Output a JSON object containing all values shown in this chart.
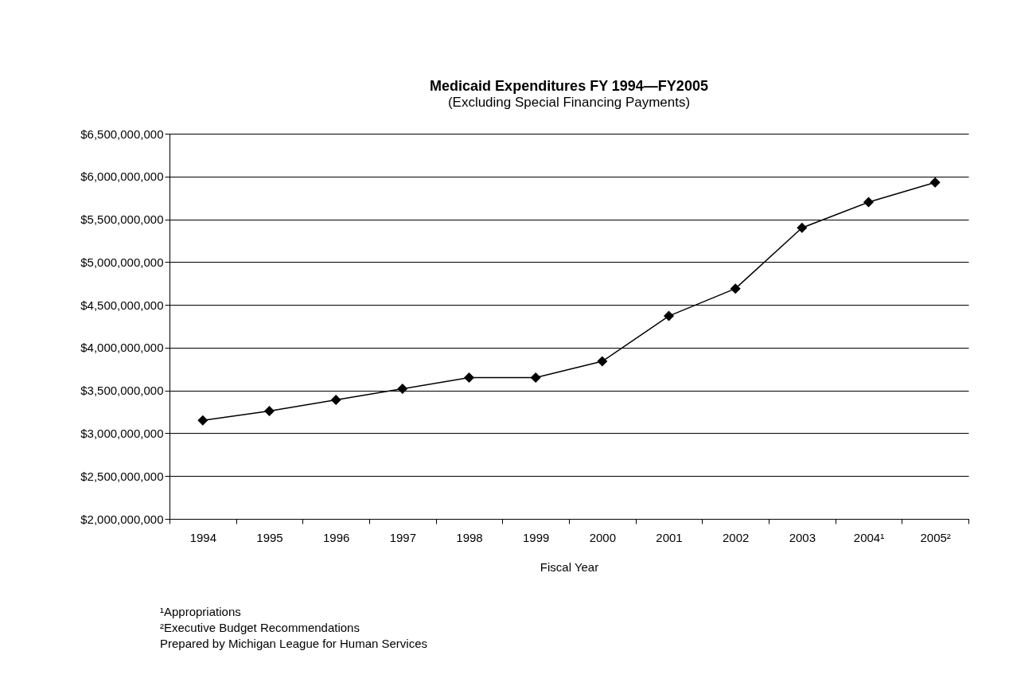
{
  "chart_data": {
    "type": "line",
    "title": "Medicaid Expenditures FY 1994—FY2005",
    "subtitle": "(Excluding Special Financing Payments)",
    "xlabel": "Fiscal Year",
    "categories": [
      "1994",
      "1995",
      "1996",
      "1997",
      "1998",
      "1999",
      "2000",
      "2001",
      "2002",
      "2003",
      "2004¹",
      "2005²"
    ],
    "series": [
      {
        "color": "#000000",
        "values": [
          3150000000,
          3260000000,
          3390000000,
          3520000000,
          3650000000,
          3650000000,
          3840000000,
          4370000000,
          4690000000,
          5400000000,
          5700000000,
          5930000000
        ]
      }
    ],
    "ylim": [
      2000000000,
      6500000000
    ],
    "yticks": [
      {
        "value": 2000000000,
        "label": "$2,000,000,000"
      },
      {
        "value": 2500000000,
        "label": "$2,500,000,000"
      },
      {
        "value": 3000000000,
        "label": "$3,000,000,000"
      },
      {
        "value": 3500000000,
        "label": "$3,500,000,000"
      },
      {
        "value": 4000000000,
        "label": "$4,000,000,000"
      },
      {
        "value": 4500000000,
        "label": "$4,500,000,000"
      },
      {
        "value": 5000000000,
        "label": "$5,000,000,000"
      },
      {
        "value": 5500000000,
        "label": "$5,500,000,000"
      },
      {
        "value": 6000000000,
        "label": "$6,000,000,000"
      },
      {
        "value": 6500000000,
        "label": "$6,500,000,000"
      }
    ],
    "grid": "y",
    "marker": "diamond",
    "annotations": [
      "¹Appropriations",
      "²Executive Budget Recommendations",
      "Prepared by Michigan League for Human Services"
    ]
  }
}
